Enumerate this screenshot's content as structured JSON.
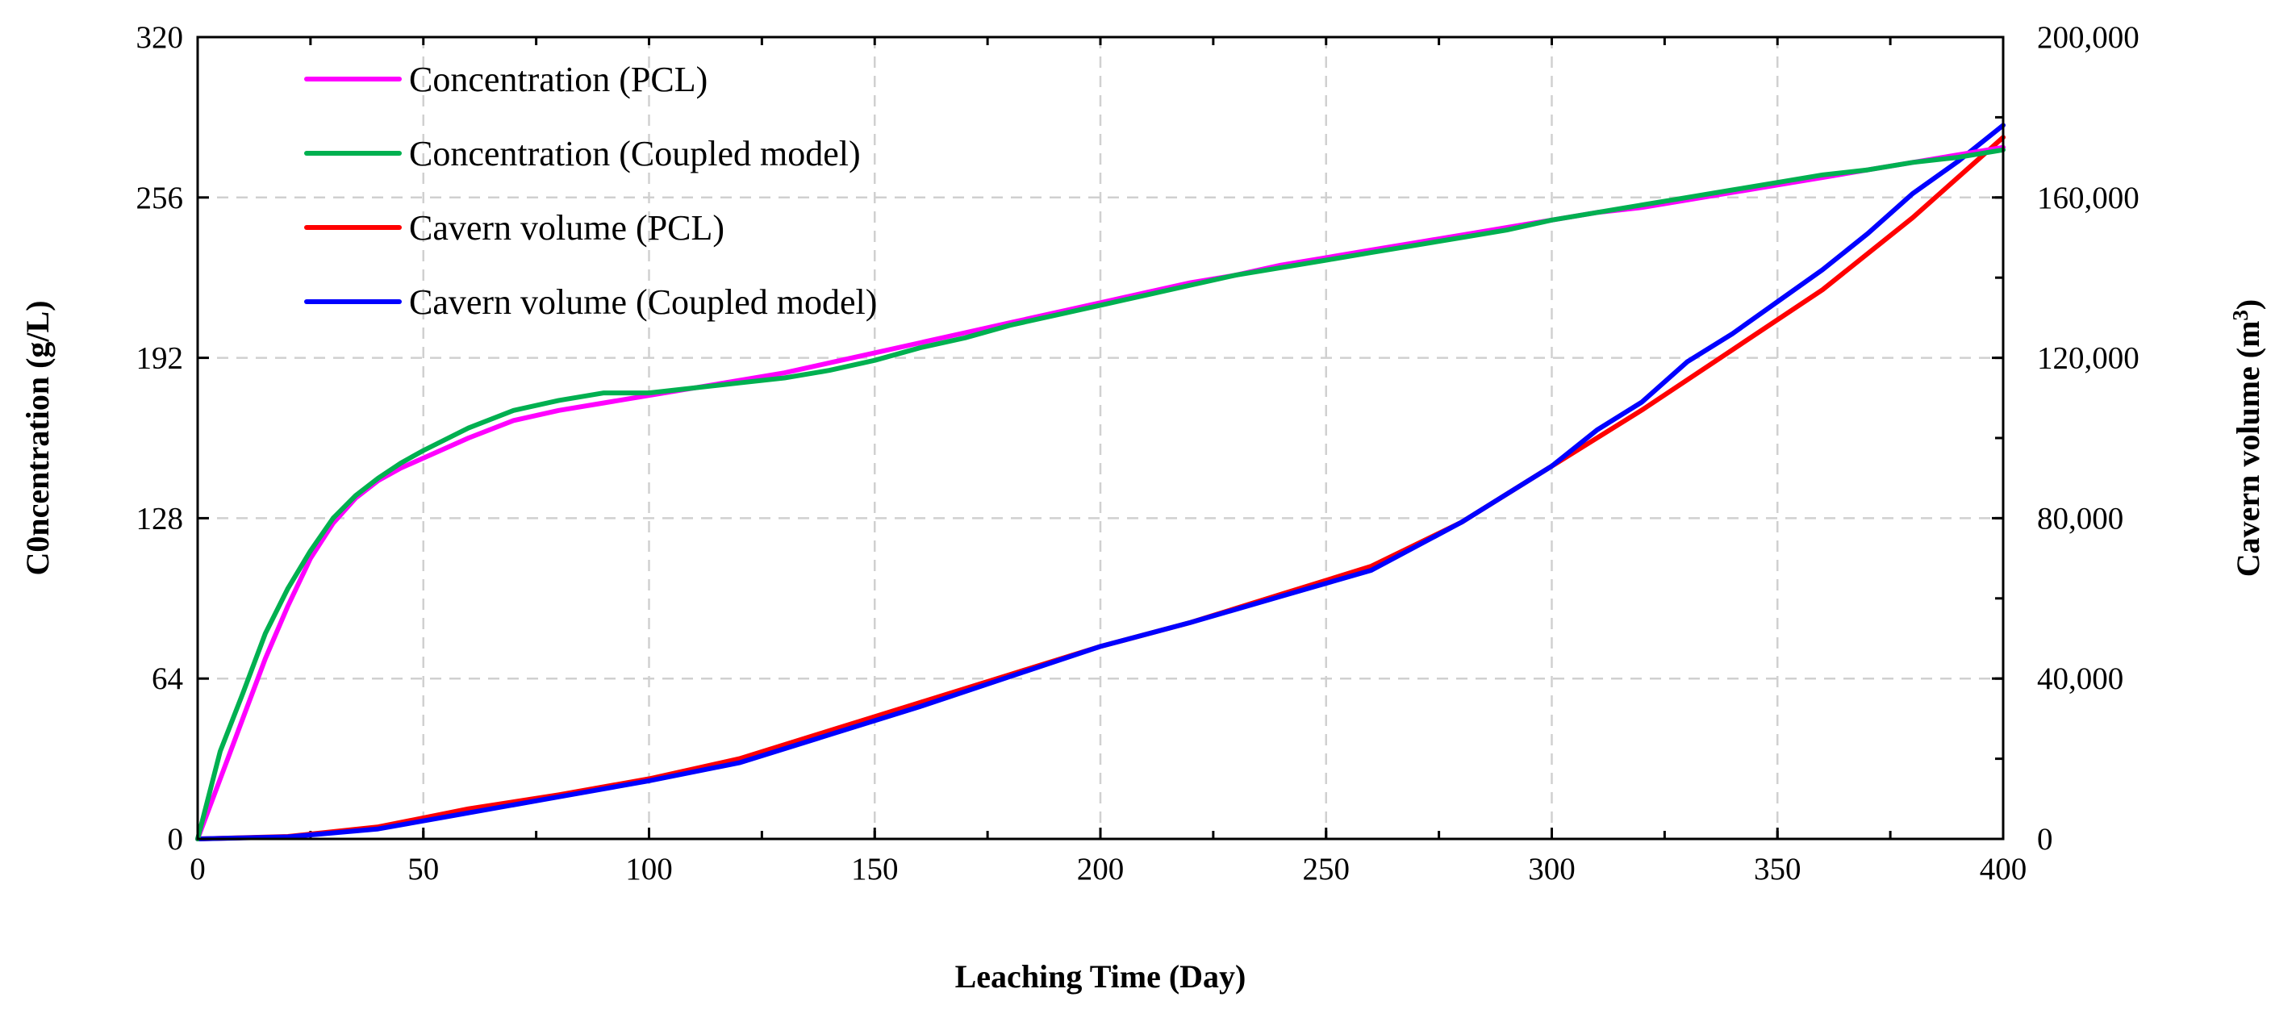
{
  "chart_data": {
    "type": "line",
    "title": "",
    "xlabel": "Leaching Time (Day)",
    "ylabel_left": "C0ncentration (g/L)",
    "ylabel_right_base": "Cavern volume (m",
    "ylabel_right_sup": "3",
    "ylabel_right_close": ")",
    "xlim": [
      0,
      400
    ],
    "ylim_left": [
      0,
      320
    ],
    "ylim_right": [
      0,
      200000
    ],
    "x_ticks": [
      0,
      50,
      100,
      150,
      200,
      250,
      300,
      350,
      400
    ],
    "x_tick_labels": [
      "0",
      "50",
      "100",
      "150",
      "200",
      "250",
      "300",
      "350",
      "400"
    ],
    "y_left_ticks": [
      0,
      64,
      128,
      192,
      256,
      320
    ],
    "y_left_tick_labels": [
      "0",
      "64",
      "128",
      "192",
      "256",
      "320"
    ],
    "y_right_ticks": [
      0,
      40000,
      80000,
      120000,
      160000,
      200000
    ],
    "y_right_tick_labels": [
      "0",
      "40,000",
      "80,000",
      "120,000",
      "160,000",
      "200,000"
    ],
    "grid": true,
    "legend_position": "top-left",
    "series": [
      {
        "name": "Concentration (PCL)",
        "axis": "left",
        "color": "#ff00ff",
        "x": [
          0,
          5,
          10,
          15,
          20,
          25,
          30,
          35,
          40,
          45,
          50,
          60,
          70,
          80,
          90,
          100,
          110,
          120,
          130,
          140,
          150,
          160,
          170,
          180,
          190,
          200,
          210,
          220,
          230,
          240,
          250,
          260,
          270,
          280,
          290,
          300,
          310,
          320,
          330,
          340,
          350,
          360,
          370,
          380,
          390,
          400
        ],
        "values": [
          0,
          24,
          48,
          72,
          93,
          112,
          126,
          136,
          143,
          148,
          152,
          160,
          167,
          171,
          174,
          177,
          180,
          183,
          186,
          190,
          194,
          198,
          202,
          206,
          210,
          214,
          218,
          222,
          225,
          229,
          232,
          235,
          238,
          241,
          244,
          247,
          250,
          252,
          255,
          258,
          261,
          264,
          267,
          270,
          273,
          276
        ]
      },
      {
        "name": "Concentration (Coupled model)",
        "axis": "left",
        "color": "#00b050",
        "x": [
          0,
          5,
          10,
          15,
          20,
          25,
          30,
          35,
          40,
          45,
          50,
          60,
          70,
          80,
          90,
          100,
          110,
          120,
          130,
          140,
          150,
          160,
          170,
          180,
          190,
          200,
          210,
          220,
          230,
          240,
          250,
          260,
          270,
          280,
          290,
          300,
          310,
          320,
          330,
          340,
          350,
          360,
          370,
          380,
          390,
          400
        ],
        "values": [
          0,
          35,
          58,
          82,
          100,
          115,
          128,
          137,
          144,
          150,
          155,
          164,
          171,
          175,
          178,
          178,
          180,
          182,
          184,
          187,
          191,
          196,
          200,
          205,
          209,
          213,
          217,
          221,
          225,
          228,
          231,
          234,
          237,
          240,
          243,
          247,
          250,
          253,
          256,
          259,
          262,
          265,
          267,
          270,
          272,
          275
        ]
      },
      {
        "name": "Cavern volume (PCL)",
        "axis": "right",
        "color": "#ff0000",
        "x": [
          0,
          20,
          40,
          60,
          80,
          100,
          120,
          140,
          160,
          180,
          200,
          220,
          240,
          260,
          280,
          300,
          320,
          340,
          360,
          380,
          400
        ],
        "values": [
          0,
          600,
          3000,
          7500,
          11000,
          15000,
          20000,
          27000,
          34000,
          41000,
          48000,
          54000,
          61000,
          68000,
          79000,
          93000,
          107000,
          122000,
          137000,
          155000,
          175000
        ]
      },
      {
        "name": "Cavern volume (Coupled model)",
        "axis": "right",
        "color": "#0000ff",
        "x": [
          0,
          20,
          40,
          60,
          80,
          100,
          120,
          140,
          160,
          180,
          200,
          220,
          240,
          260,
          280,
          300,
          310,
          320,
          330,
          340,
          350,
          360,
          370,
          380,
          390,
          400
        ],
        "values": [
          0,
          500,
          2500,
          6500,
          10500,
          14500,
          19000,
          26000,
          33000,
          40500,
          48000,
          54000,
          60500,
          67000,
          79000,
          93000,
          102000,
          109000,
          119000,
          126000,
          134000,
          142000,
          151000,
          161000,
          169000,
          178000
        ]
      }
    ]
  }
}
